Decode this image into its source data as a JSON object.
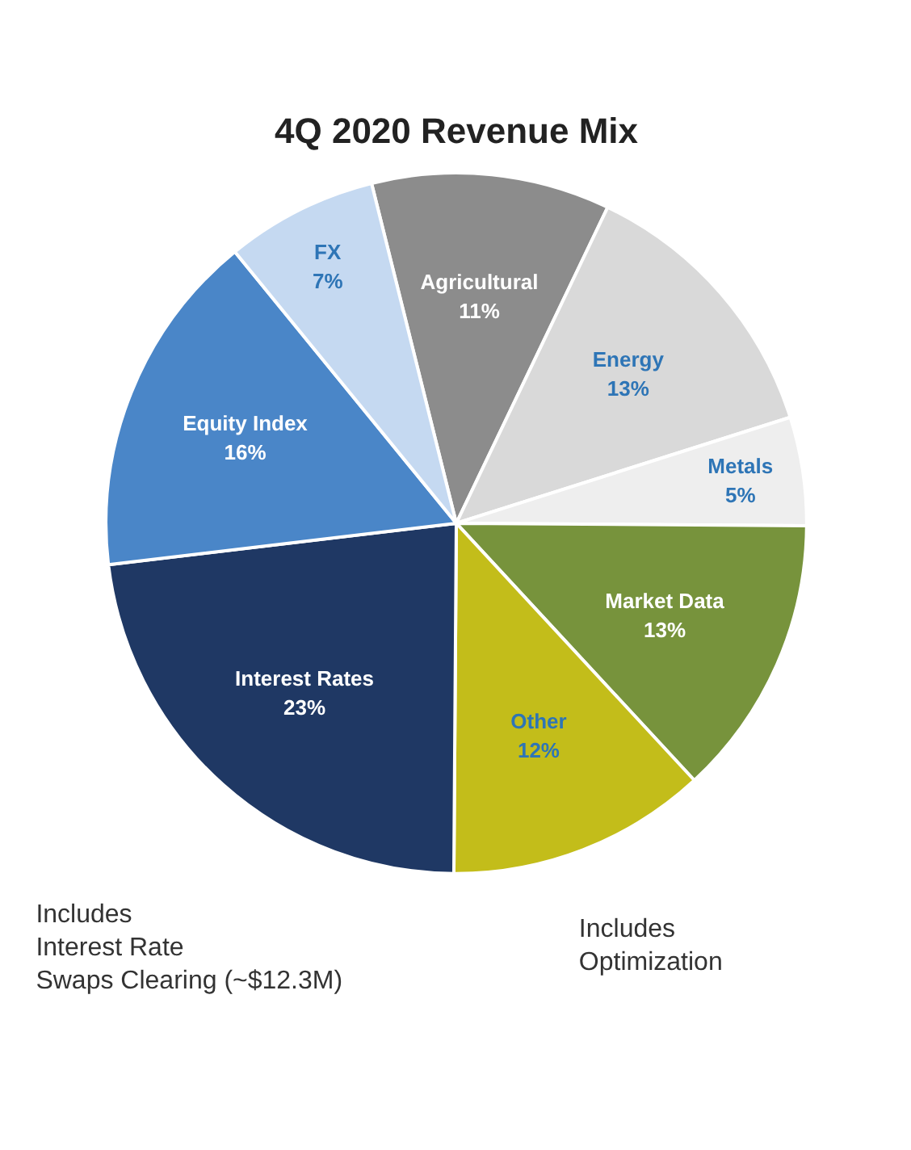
{
  "chart_data": {
    "type": "pie",
    "title": "4Q 2020 Revenue Mix",
    "categories": [
      "Agricultural",
      "Energy",
      "Metals",
      "Market Data",
      "Other",
      "Interest Rates",
      "Equity Index",
      "FX"
    ],
    "values": [
      11,
      13,
      5,
      13,
      12,
      23,
      16,
      7
    ],
    "value_labels": [
      "11%",
      "13%",
      "5%",
      "13%",
      "12%",
      "23%",
      "16%",
      "7%"
    ],
    "colors": [
      "#8c8c8c",
      "#d9d9d9",
      "#eeeeee",
      "#77933c",
      "#c3bd1a",
      "#1f3864",
      "#4a86c8",
      "#c5d9f1"
    ],
    "annotations": [
      "Includes\nInterest Rate\nSwaps Clearing (~$12.3M)",
      "Includes\nOptimization"
    ]
  }
}
